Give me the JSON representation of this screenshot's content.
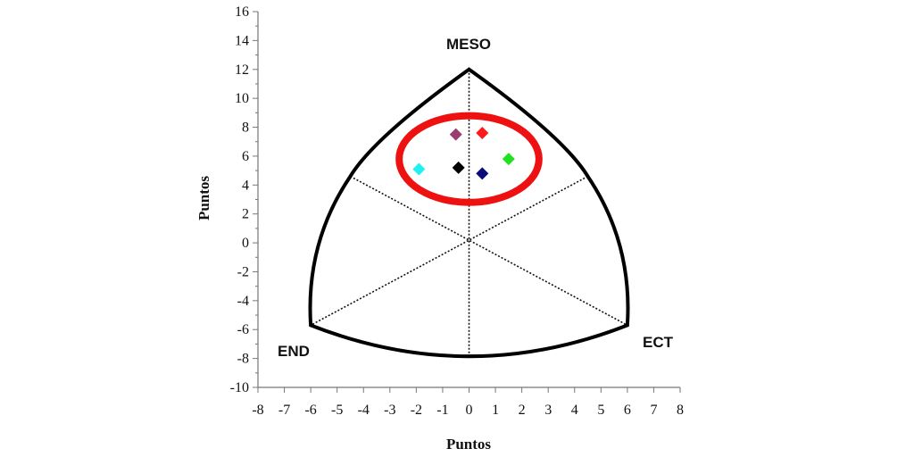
{
  "chart_data": {
    "type": "scatter",
    "title": "",
    "xlabel": "Puntos",
    "ylabel": "Puntos",
    "xlim": [
      -8,
      8
    ],
    "ylim": [
      -10,
      16
    ],
    "x_ticks": [
      -8,
      -7,
      -6,
      -5,
      -4,
      -3,
      -2,
      -1,
      0,
      1,
      2,
      3,
      4,
      5,
      6,
      7,
      8
    ],
    "y_ticks": [
      16,
      14,
      12,
      10,
      8,
      6,
      4,
      2,
      0,
      -2,
      -4,
      -6,
      -8,
      -10
    ],
    "grid": false,
    "legend": "none",
    "somatochart": {
      "vertices": {
        "MESO": [
          0,
          12
        ],
        "END": [
          -6,
          -5.7
        ],
        "ECT": [
          6,
          -5.7
        ]
      },
      "vertex_labels": {
        "meso": "MESO",
        "end": "END",
        "ect": "ECT"
      }
    },
    "points": [
      {
        "x": -0.5,
        "y": 7.5,
        "color": "#9b3d6e"
      },
      {
        "x": 0.5,
        "y": 7.6,
        "color": "#ff1a1a"
      },
      {
        "x": 1.5,
        "y": 5.8,
        "color": "#22e022"
      },
      {
        "x": -1.9,
        "y": 5.1,
        "color": "#22f0f0"
      },
      {
        "x": -0.4,
        "y": 5.2,
        "color": "#000000"
      },
      {
        "x": 0.5,
        "y": 4.8,
        "color": "#0a0a7a"
      }
    ],
    "highlight_ellipse": {
      "center": [
        0,
        5.8
      ],
      "rx": 2.65,
      "ry": 3.0,
      "color": "#ee1111"
    }
  }
}
